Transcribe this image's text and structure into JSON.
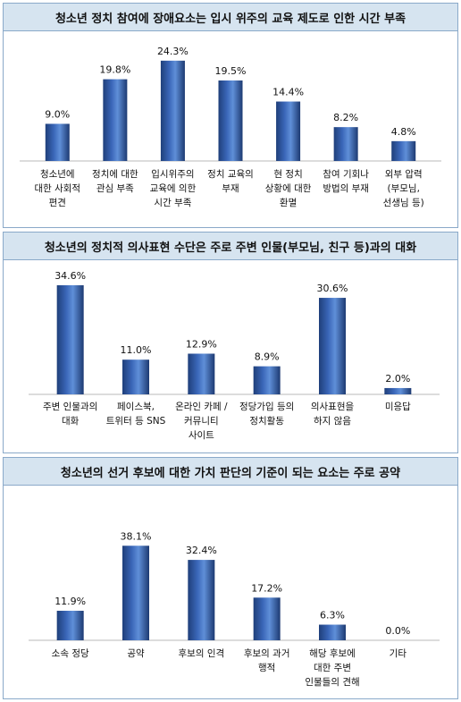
{
  "chart_data": [
    {
      "type": "bar",
      "title": "청소년 정치 참여에 장애요소는 입시 위주의 교육 제도로 인한 시간 부족",
      "categories": [
        "청소년에\n대한 사회적\n편견",
        "정치에 대한\n관심 부족",
        "입시위주의\n교육에 의한\n시간 부족",
        "정치 교육의\n부재",
        "현 정치\n상황에 대한\n환멸",
        "참여 기회나\n방법의 부재",
        "외부 압력\n(부모님,\n선생님 등)"
      ],
      "values": [
        9.0,
        19.8,
        24.3,
        19.5,
        14.4,
        8.2,
        4.8
      ],
      "value_labels": [
        "9.0%",
        "19.8%",
        "24.3%",
        "19.5%",
        "14.4%",
        "8.2%",
        "4.8%"
      ],
      "ylim": [
        0,
        26
      ],
      "grid": false,
      "legend": "none"
    },
    {
      "type": "bar",
      "title": "청소년의 정치적 의사표현 수단은 주로 주변 인물(부모님, 친구 등)과의 대화",
      "categories": [
        "주변 인물과의\n대화",
        "페이스북,\n트위터 등 SNS",
        "온라인 카페 /\n커뮤니티\n사이트",
        "정당가입 등의\n정치활동",
        "의사표현을\n하지 않음",
        "미응답"
      ],
      "values": [
        34.6,
        11.0,
        12.9,
        8.9,
        30.6,
        2.0
      ],
      "value_labels": [
        "34.6%",
        "11.0%",
        "12.9%",
        "8.9%",
        "30.6%",
        "2.0%"
      ],
      "ylim": [
        0,
        36
      ],
      "grid": false,
      "legend": "none"
    },
    {
      "type": "bar",
      "title": "청소년의 선거 후보에 대한 가치 판단의 기준이 되는 요소는 주로 공약",
      "categories": [
        "소속 정당",
        "공약",
        "후보의 인격",
        "후보의 과거\n행적",
        "해당 후보에\n대한 주변\n인물들의 견해",
        "기타"
      ],
      "values": [
        11.9,
        38.1,
        32.4,
        17.2,
        6.3,
        0.0
      ],
      "value_labels": [
        "11.9%",
        "38.1%",
        "32.4%",
        "17.2%",
        "6.3%",
        "0.0%"
      ],
      "ylim": [
        0,
        40
      ],
      "grid": false,
      "legend": "none"
    }
  ]
}
